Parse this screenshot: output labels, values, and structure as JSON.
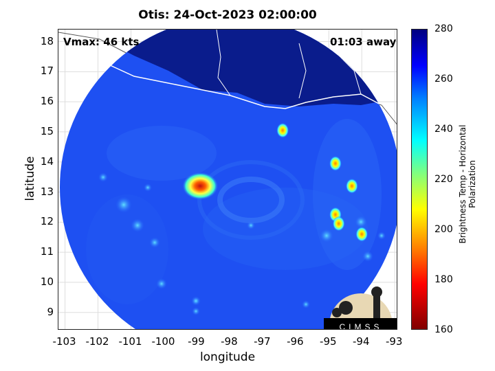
{
  "title": "Otis: 24-Oct-2023 02:00:00",
  "vmax_label": "Vmax: 46 kts",
  "time_label": "01:03 away",
  "xlabel": "longitude",
  "ylabel": "latitude",
  "colorbar_label": "Brightness Temp - Horizontal Polarization",
  "logo_text": "CIMSS",
  "x_ticks": [
    "-103",
    "-102",
    "-101",
    "-100",
    "-99",
    "-98",
    "-97",
    "-96",
    "-95",
    "-94",
    "-93"
  ],
  "y_ticks": [
    "18",
    "17",
    "16",
    "15",
    "14",
    "13",
    "12",
    "11",
    "10",
    "9"
  ],
  "colorbar_ticks": [
    "280",
    "260",
    "240",
    "220",
    "200",
    "180",
    "160"
  ],
  "colors": {
    "ocean": "#1a4cf0",
    "land": "#0a1a8a",
    "core": "#d03010"
  },
  "chart_data": {
    "type": "heatmap",
    "title": "Otis: 24-Oct-2023 02:00:00",
    "xlabel": "longitude",
    "ylabel": "latitude",
    "xlim": [
      -103.2,
      -92.9
    ],
    "ylim": [
      8.4,
      18.4
    ],
    "clim": [
      160,
      280
    ],
    "colorbar_label": "Brightness Temp - Horizontal Polarization",
    "storm_center": {
      "lon": -98.9,
      "lat": 13.2,
      "min_tb": 185
    },
    "swath_center": {
      "lon": -98.0,
      "lat": 13.0
    },
    "features": [
      {
        "lon": -96.4,
        "lat": 15.05,
        "tb": 215
      },
      {
        "lon": -94.8,
        "lat": 13.95,
        "tb": 190
      },
      {
        "lon": -94.3,
        "lat": 13.2,
        "tb": 195
      },
      {
        "lon": -94.8,
        "lat": 12.25,
        "tb": 200
      },
      {
        "lon": -94.7,
        "lat": 11.95,
        "tb": 205
      },
      {
        "lon": -94.0,
        "lat": 11.6,
        "tb": 205
      }
    ]
  }
}
